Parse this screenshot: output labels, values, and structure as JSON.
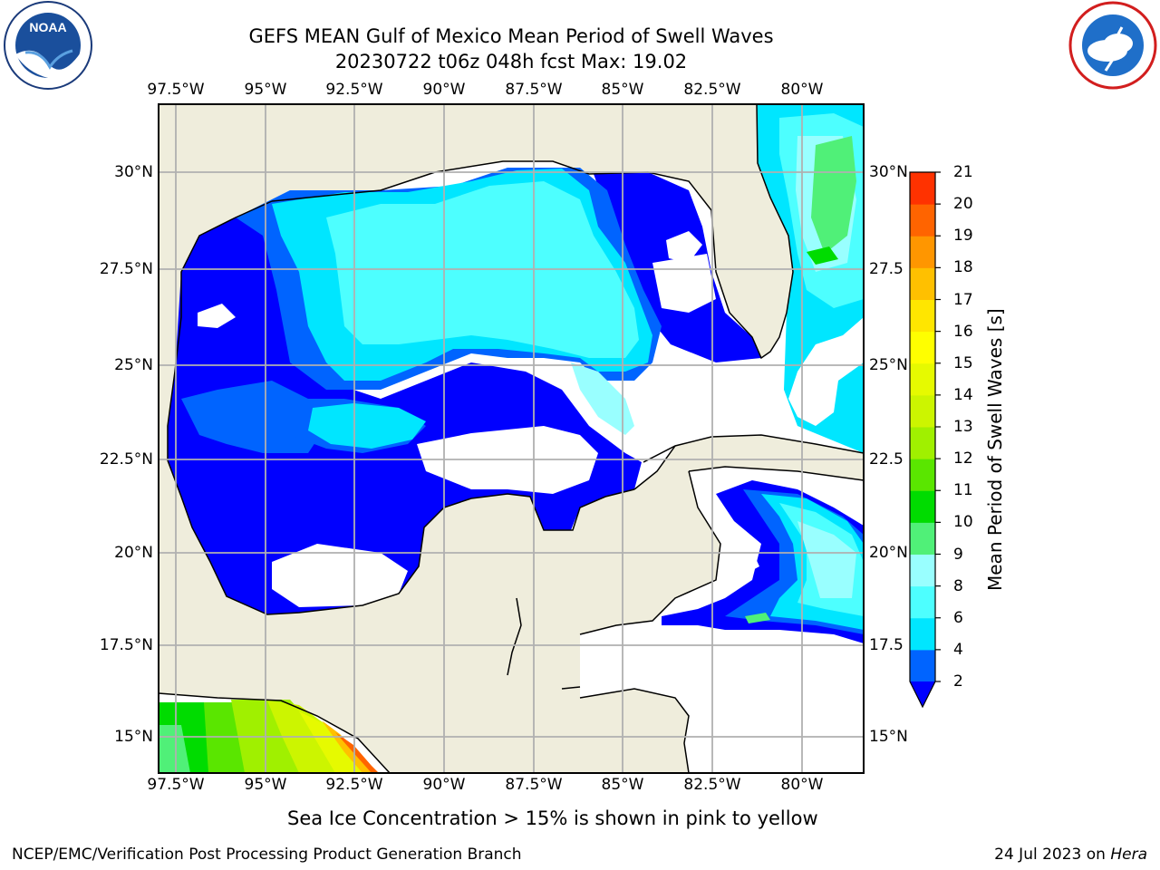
{
  "header": {
    "title_line1": "GEFS MEAN Gulf of Mexico Mean Period of Swell Waves",
    "title_line2": "20230722 t06z 048h fcst   Max: 19.02"
  },
  "logos": {
    "noaa_logo": {
      "text": "NOAA",
      "ring_text": "NATIONAL OCEANIC AND ATMOSPHERIC ADMINISTRATION · U.S. DEPARTMENT OF COMMERCE"
    },
    "nws_logo": {
      "ring_text": "NATIONAL WEATHER SERVICE"
    }
  },
  "map": {
    "lon_labels": [
      "97.5°W",
      "95°W",
      "92.5°W",
      "90°W",
      "87.5°W",
      "85°W",
      "82.5°W",
      "80°W"
    ],
    "lat_labels_left": [
      "30°N",
      "27.5°N",
      "25°N",
      "22.5°N",
      "20°N",
      "17.5°N",
      "15°N"
    ],
    "lat_labels_right": [
      "30°N",
      "27.5",
      "25°N",
      "22.5",
      "20°N",
      "17.5",
      "15°N"
    ],
    "colors": {
      "land": "#efeddc",
      "ocean_nodata": "#ffffff",
      "grid": "#b0b0b0",
      "coast": "#000000"
    }
  },
  "colorbar": {
    "label": "Mean Period of Swell Waves [s]",
    "ticks": [
      "2",
      "4",
      "6",
      "8",
      "9",
      "10",
      "11",
      "12",
      "13",
      "14",
      "15",
      "16",
      "17",
      "18",
      "19",
      "20",
      "21"
    ],
    "colors": [
      "#0064ff",
      "#00e6ff",
      "#4dffff",
      "#99ffff",
      "#50f078",
      "#00dc00",
      "#5ae600",
      "#a0f000",
      "#ccf500",
      "#e6fa00",
      "#ffff00",
      "#ffe600",
      "#ffc000",
      "#ff9600",
      "#ff6400",
      "#ff3200"
    ],
    "under_color": "#0000ff",
    "extend": "min"
  },
  "caption": "Sea Ice Concentration > 15% is shown in pink to yellow",
  "footer": {
    "left": "NCEP/EMC/Verification Post Processing Product Generation Branch",
    "date": "24 Jul 2023 on ",
    "host": "Hera"
  }
}
